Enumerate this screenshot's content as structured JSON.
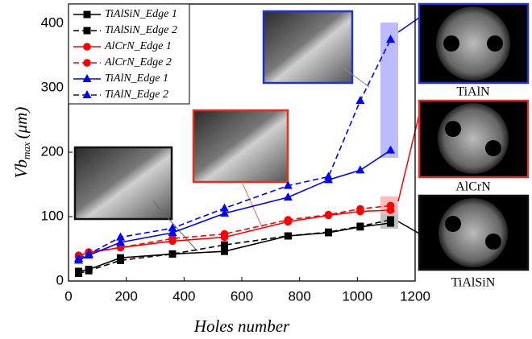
{
  "chart_data": {
    "type": "line",
    "x_label": "Holes number",
    "y_label": {
      "main": "Vb",
      "sub": "max",
      "unit": "(μm)"
    },
    "x": [
      35,
      70,
      180,
      360,
      540,
      760,
      900,
      1010,
      1115
    ],
    "series": [
      {
        "name": "TiAlSiN_Edge 1",
        "color": "#000000",
        "dash": false,
        "marker": "square",
        "values": [
          15,
          18,
          36,
          42,
          46,
          70,
          75,
          84,
          90
        ]
      },
      {
        "name": "TiAlSiN_Edge 2",
        "color": "#000000",
        "dash": true,
        "marker": "square",
        "values": [
          12,
          16,
          32,
          42,
          56,
          70,
          76,
          85,
          95
        ]
      },
      {
        "name": "AlCrN_Edge 1",
        "color": "#ff0000",
        "dash": false,
        "marker": "circle",
        "values": [
          40,
          44,
          52,
          62,
          68,
          92,
          102,
          108,
          110
        ]
      },
      {
        "name": "AlCrN_Edge 2",
        "color": "#ff0000",
        "dash": true,
        "marker": "circle",
        "values": [
          38,
          45,
          52,
          66,
          73,
          95,
          103,
          112,
          117
        ]
      },
      {
        "name": "TiAlN_Edge 1",
        "color": "#0000ff",
        "dash": false,
        "marker": "triangle",
        "values": [
          32,
          40,
          60,
          75,
          105,
          130,
          157,
          172,
          203
        ]
      },
      {
        "name": "TiAlN_Edge 2",
        "color": "#0000ff",
        "dash": true,
        "marker": "triangle",
        "values": [
          35,
          42,
          68,
          82,
          113,
          148,
          162,
          280,
          375
        ]
      }
    ],
    "xlim": [
      0,
      1200
    ],
    "xticks": [
      0,
      200,
      400,
      600,
      800,
      1000,
      1200
    ],
    "ylim": [
      0,
      430
    ],
    "yticks": [
      0,
      100,
      200,
      300,
      400
    ],
    "legend": "top-left",
    "annotations": [
      "TiAlN",
      "AlCrN",
      "TiAlSiN"
    ]
  }
}
